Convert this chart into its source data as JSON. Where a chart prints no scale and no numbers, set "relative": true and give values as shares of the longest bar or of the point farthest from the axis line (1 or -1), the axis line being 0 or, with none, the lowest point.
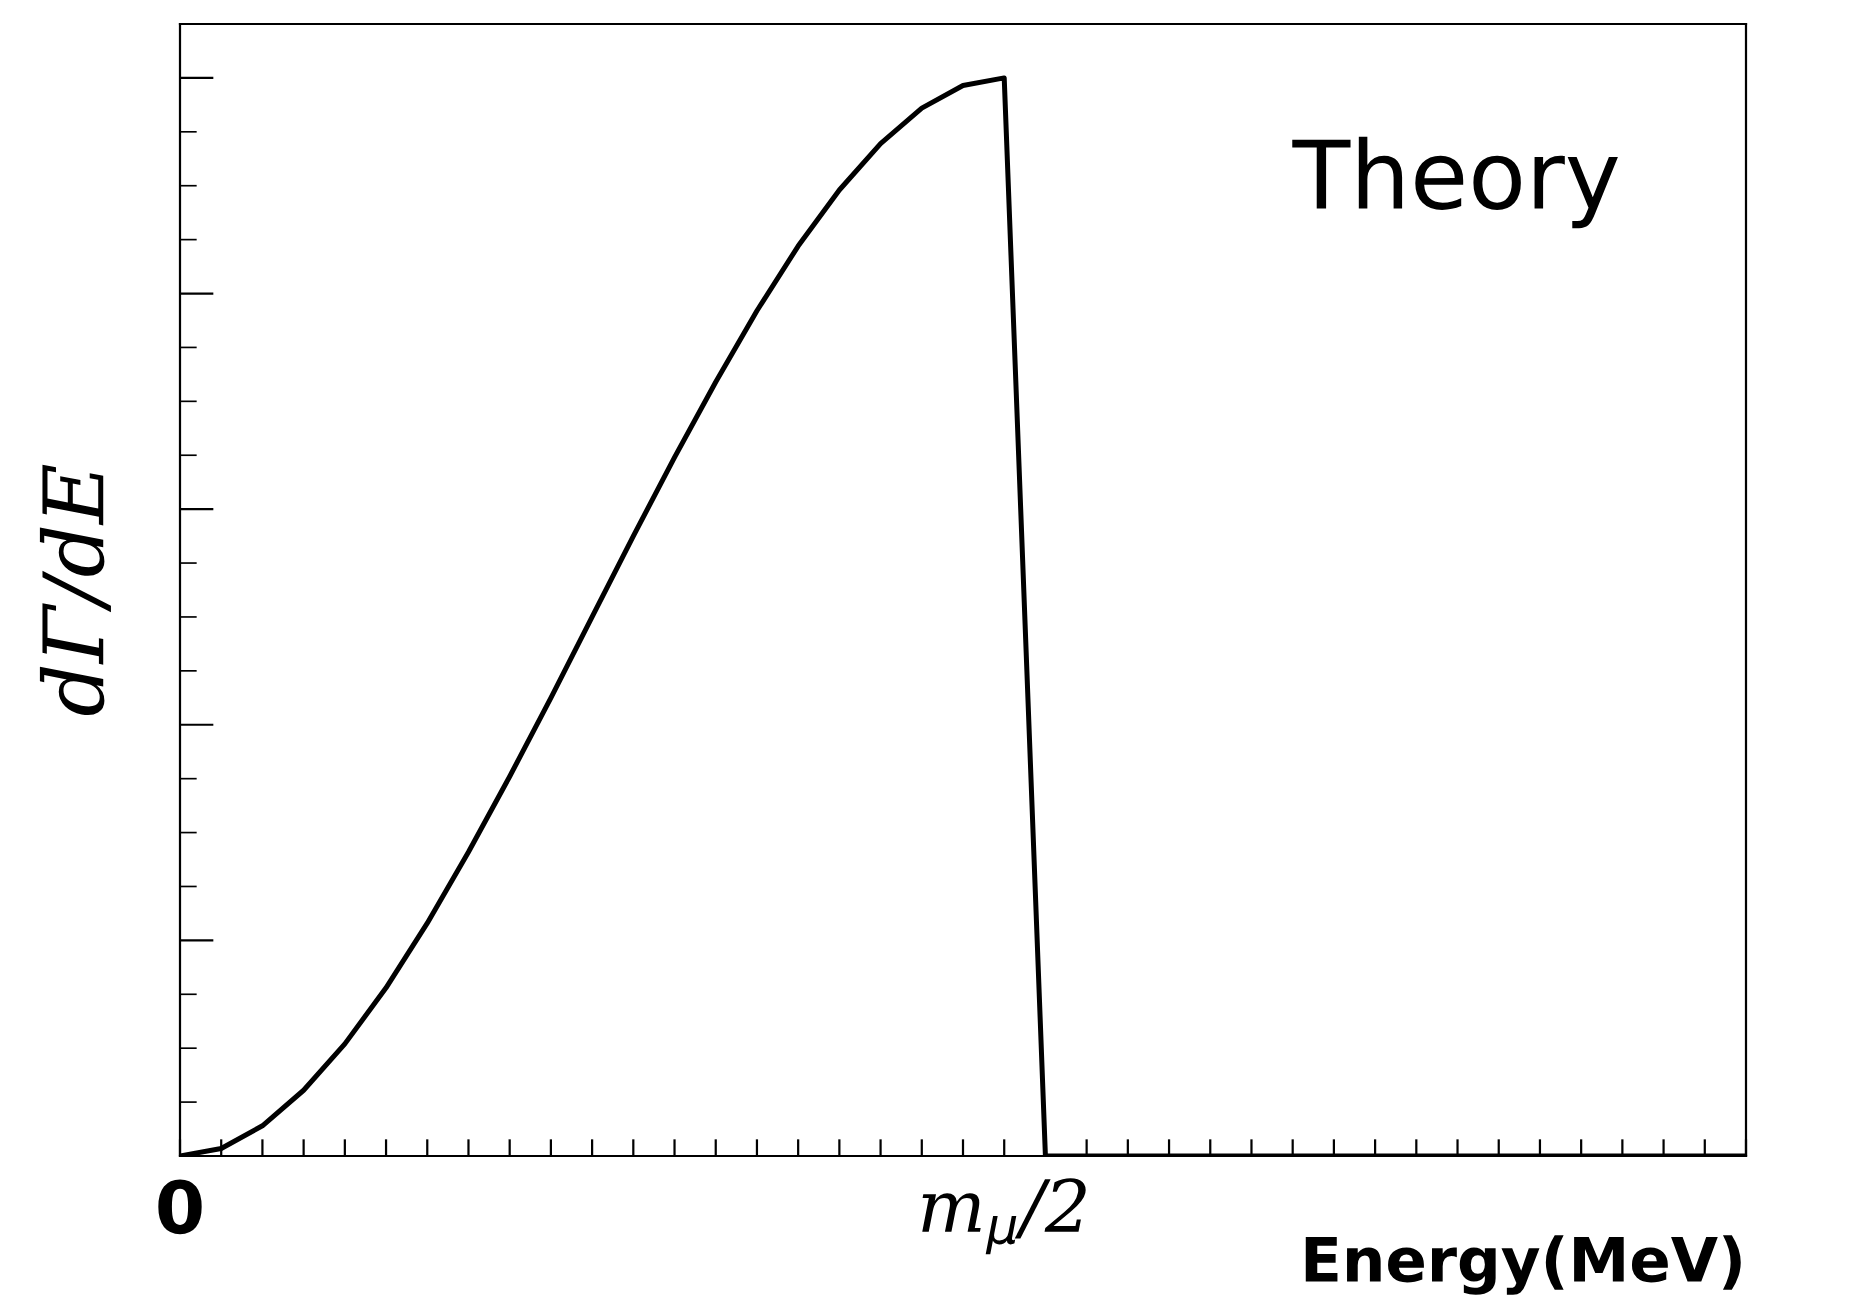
{
  "chart_data": {
    "type": "line",
    "relative": true,
    "xlabel": "Energy(MeV)",
    "ylabel": "dΓ/dE",
    "categories": [
      "0",
      null,
      null,
      null,
      null,
      null,
      null,
      null,
      null,
      null,
      null,
      null,
      null,
      null,
      null,
      null,
      null,
      null,
      null,
      null,
      "m$_{μ}$/2",
      null,
      null,
      null,
      null,
      null,
      null,
      null,
      null,
      null,
      null,
      null,
      null,
      null,
      null,
      null,
      null,
      null,
      null
    ],
    "series": [
      {
        "color": "#000000",
        "values": [
          0,
          0.007,
          0.028,
          0.061,
          0.104,
          0.156,
          0.216,
          0.282,
          0.352,
          0.425,
          0.5,
          0.575,
          0.648,
          0.718,
          0.784,
          0.844,
          0.896,
          0.939,
          0.972,
          0.993,
          1.0,
          0,
          0,
          0,
          0,
          0,
          0,
          0,
          0,
          0,
          0,
          0,
          0,
          0,
          0,
          0,
          0,
          0,
          0
        ]
      }
    ],
    "annotations": [
      "Theory"
    ],
    "grid": false,
    "legend": false,
    "marker": "none",
    "line_style": "solid"
  }
}
